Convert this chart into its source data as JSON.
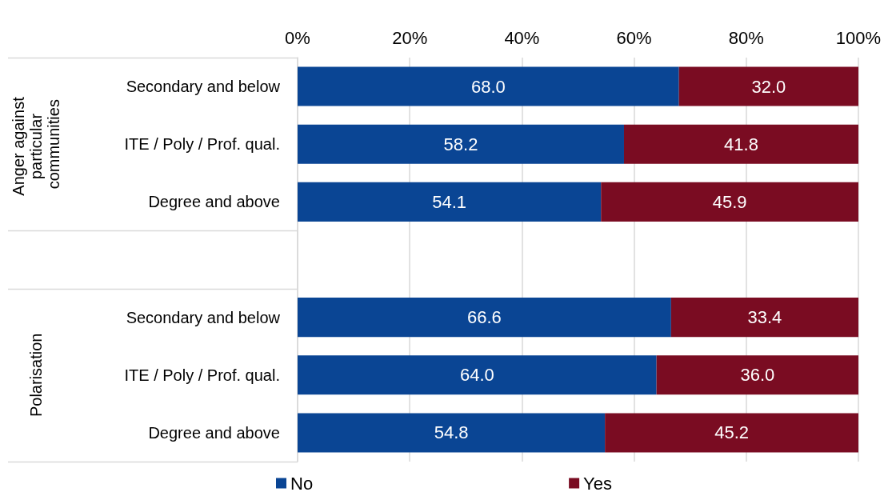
{
  "chart_data": {
    "type": "bar",
    "orientation": "horizontal",
    "stacked": true,
    "categories": [
      "Secondary and below",
      "ITE / Poly / Prof. qual.",
      "Degree and above",
      null,
      "Secondary and below",
      "ITE / Poly / Prof. qual.",
      "Degree and above"
    ],
    "series": [
      {
        "name": "No",
        "color": "#0a4594",
        "values": [
          68.0,
          58.2,
          54.1,
          null,
          66.6,
          64.0,
          54.8
        ],
        "value_labels": [
          "68.0",
          "58.2",
          "54.1",
          null,
          "66.6",
          "64.0",
          "54.8"
        ]
      },
      {
        "name": "Yes",
        "color": "#7a0c22",
        "values": [
          32.0,
          41.8,
          45.9,
          null,
          33.4,
          36.0,
          45.2
        ],
        "value_labels": [
          "32.0",
          "41.8",
          "45.9",
          null,
          "33.4",
          "36.0",
          "45.2"
        ]
      }
    ],
    "xlim": [
      0,
      100
    ],
    "xticks": [
      {
        "value": 0,
        "label": "0%"
      },
      {
        "value": 20,
        "label": "20%"
      },
      {
        "value": 40,
        "label": "40%"
      },
      {
        "value": 60,
        "label": "60%"
      },
      {
        "value": 80,
        "label": "80%"
      },
      {
        "value": 100,
        "label": "100%"
      }
    ],
    "annotations": [
      "Anger against particular communities",
      "Polarisation"
    ],
    "grid": "x",
    "legend": "bottom"
  }
}
